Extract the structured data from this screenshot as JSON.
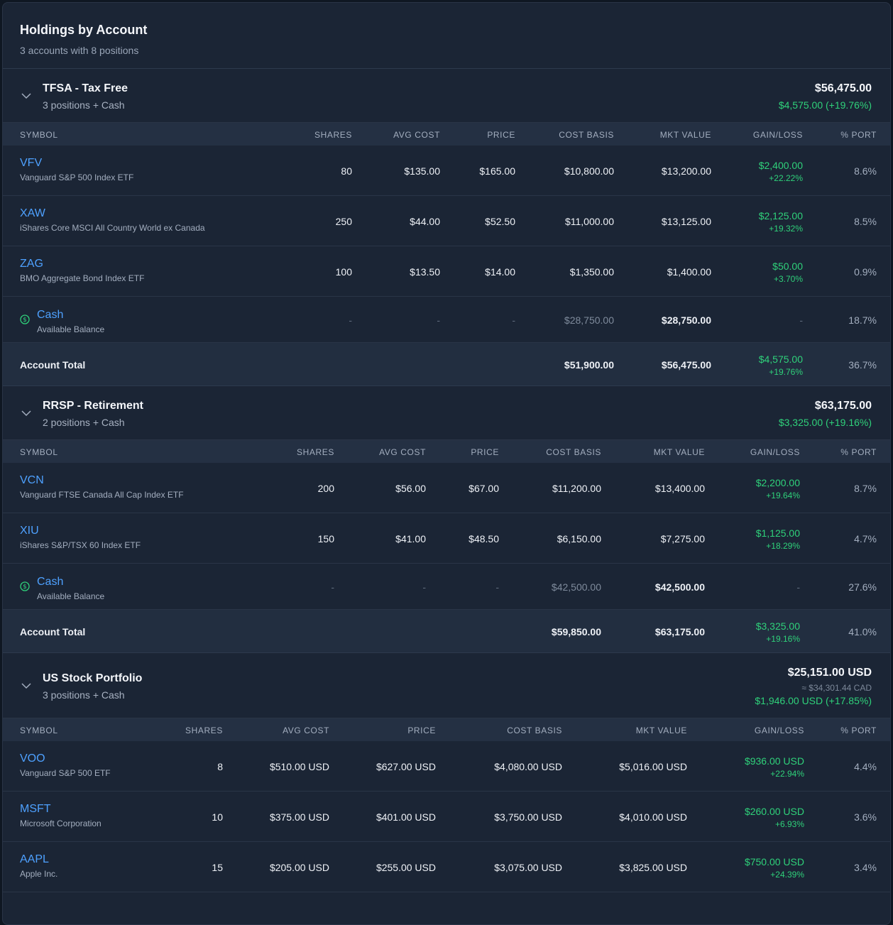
{
  "header": {
    "title": "Holdings by Account",
    "subtitle": "3 accounts with 8 positions"
  },
  "columns": [
    "SYMBOL",
    "SHARES",
    "AVG COST",
    "PRICE",
    "COST BASIS",
    "MKT VALUE",
    "GAIN/LOSS",
    "% PORT"
  ],
  "accounts": [
    {
      "name": "TFSA - Tax Free",
      "subtitle": "3 positions + Cash",
      "total_value": "$56,475.00",
      "total_gain": "$4,575.00 (+19.76%)",
      "holdings": [
        {
          "symbol": "VFV",
          "name": "Vanguard S&P 500 Index ETF",
          "shares": "80",
          "avg_cost": "$135.00",
          "price": "$165.00",
          "cost_basis": "$10,800.00",
          "mkt_value": "$13,200.00",
          "gain": "$2,400.00",
          "gain_pct": "+22.22%",
          "port": "8.6%"
        },
        {
          "symbol": "XAW",
          "name": "iShares Core MSCI All Country World ex Canada",
          "shares": "250",
          "avg_cost": "$44.00",
          "price": "$52.50",
          "cost_basis": "$11,000.00",
          "mkt_value": "$13,125.00",
          "gain": "$2,125.00",
          "gain_pct": "+19.32%",
          "port": "8.5%"
        },
        {
          "symbol": "ZAG",
          "name": "BMO Aggregate Bond Index ETF",
          "shares": "100",
          "avg_cost": "$13.50",
          "price": "$14.00",
          "cost_basis": "$1,350.00",
          "mkt_value": "$1,400.00",
          "gain": "$50.00",
          "gain_pct": "+3.70%",
          "port": "0.9%"
        }
      ],
      "cash": {
        "label": "Cash",
        "sublabel": "Available Balance",
        "dash": "-",
        "cost_basis": "$28,750.00",
        "mkt_value": "$28,750.00",
        "port": "18.7%"
      },
      "total": {
        "label": "Account Total",
        "cost_basis": "$51,900.00",
        "mkt_value": "$56,475.00",
        "gain": "$4,575.00",
        "gain_pct": "+19.76%",
        "port": "36.7%"
      }
    },
    {
      "name": "RRSP - Retirement",
      "subtitle": "2 positions + Cash",
      "total_value": "$63,175.00",
      "total_gain": "$3,325.00 (+19.16%)",
      "holdings": [
        {
          "symbol": "VCN",
          "name": "Vanguard FTSE Canada All Cap Index ETF",
          "shares": "200",
          "avg_cost": "$56.00",
          "price": "$67.00",
          "cost_basis": "$11,200.00",
          "mkt_value": "$13,400.00",
          "gain": "$2,200.00",
          "gain_pct": "+19.64%",
          "port": "8.7%"
        },
        {
          "symbol": "XIU",
          "name": "iShares S&P/TSX 60 Index ETF",
          "shares": "150",
          "avg_cost": "$41.00",
          "price": "$48.50",
          "cost_basis": "$6,150.00",
          "mkt_value": "$7,275.00",
          "gain": "$1,125.00",
          "gain_pct": "+18.29%",
          "port": "4.7%"
        }
      ],
      "cash": {
        "label": "Cash",
        "sublabel": "Available Balance",
        "dash": "-",
        "cost_basis": "$42,500.00",
        "mkt_value": "$42,500.00",
        "port": "27.6%"
      },
      "total": {
        "label": "Account Total",
        "cost_basis": "$59,850.00",
        "mkt_value": "$63,175.00",
        "gain": "$3,325.00",
        "gain_pct": "+19.16%",
        "port": "41.0%"
      }
    },
    {
      "name": "US Stock Portfolio",
      "subtitle": "3 positions + Cash",
      "total_value": "$25,151.00 USD",
      "total_cad": "≈ $34,301.44 CAD",
      "total_gain": "$1,946.00 USD (+17.85%)",
      "holdings": [
        {
          "symbol": "VOO",
          "name": "Vanguard S&P 500 ETF",
          "shares": "8",
          "avg_cost": "$510.00 USD",
          "price": "$627.00 USD",
          "cost_basis": "$4,080.00 USD",
          "mkt_value": "$5,016.00 USD",
          "gain": "$936.00 USD",
          "gain_pct": "+22.94%",
          "port": "4.4%"
        },
        {
          "symbol": "MSFT",
          "name": "Microsoft Corporation",
          "shares": "10",
          "avg_cost": "$375.00 USD",
          "price": "$401.00 USD",
          "cost_basis": "$3,750.00 USD",
          "mkt_value": "$4,010.00 USD",
          "gain": "$260.00 USD",
          "gain_pct": "+6.93%",
          "port": "3.6%"
        },
        {
          "symbol": "AAPL",
          "name": "Apple Inc.",
          "shares": "15",
          "avg_cost": "$205.00 USD",
          "price": "$255.00 USD",
          "cost_basis": "$3,075.00 USD",
          "mkt_value": "$3,825.00 USD",
          "gain": "$750.00 USD",
          "gain_pct": "+24.39%",
          "port": "3.4%"
        }
      ]
    }
  ],
  "colors": {
    "background": "#1b2535",
    "table_header": "#243043",
    "link": "#4ea1ff",
    "gain": "#2fd17a",
    "text": "#eef1f6",
    "muted": "#a3aebf"
  },
  "icons": {
    "collapse": "chevron-down-icon",
    "cash": "dollar-circle-icon"
  }
}
